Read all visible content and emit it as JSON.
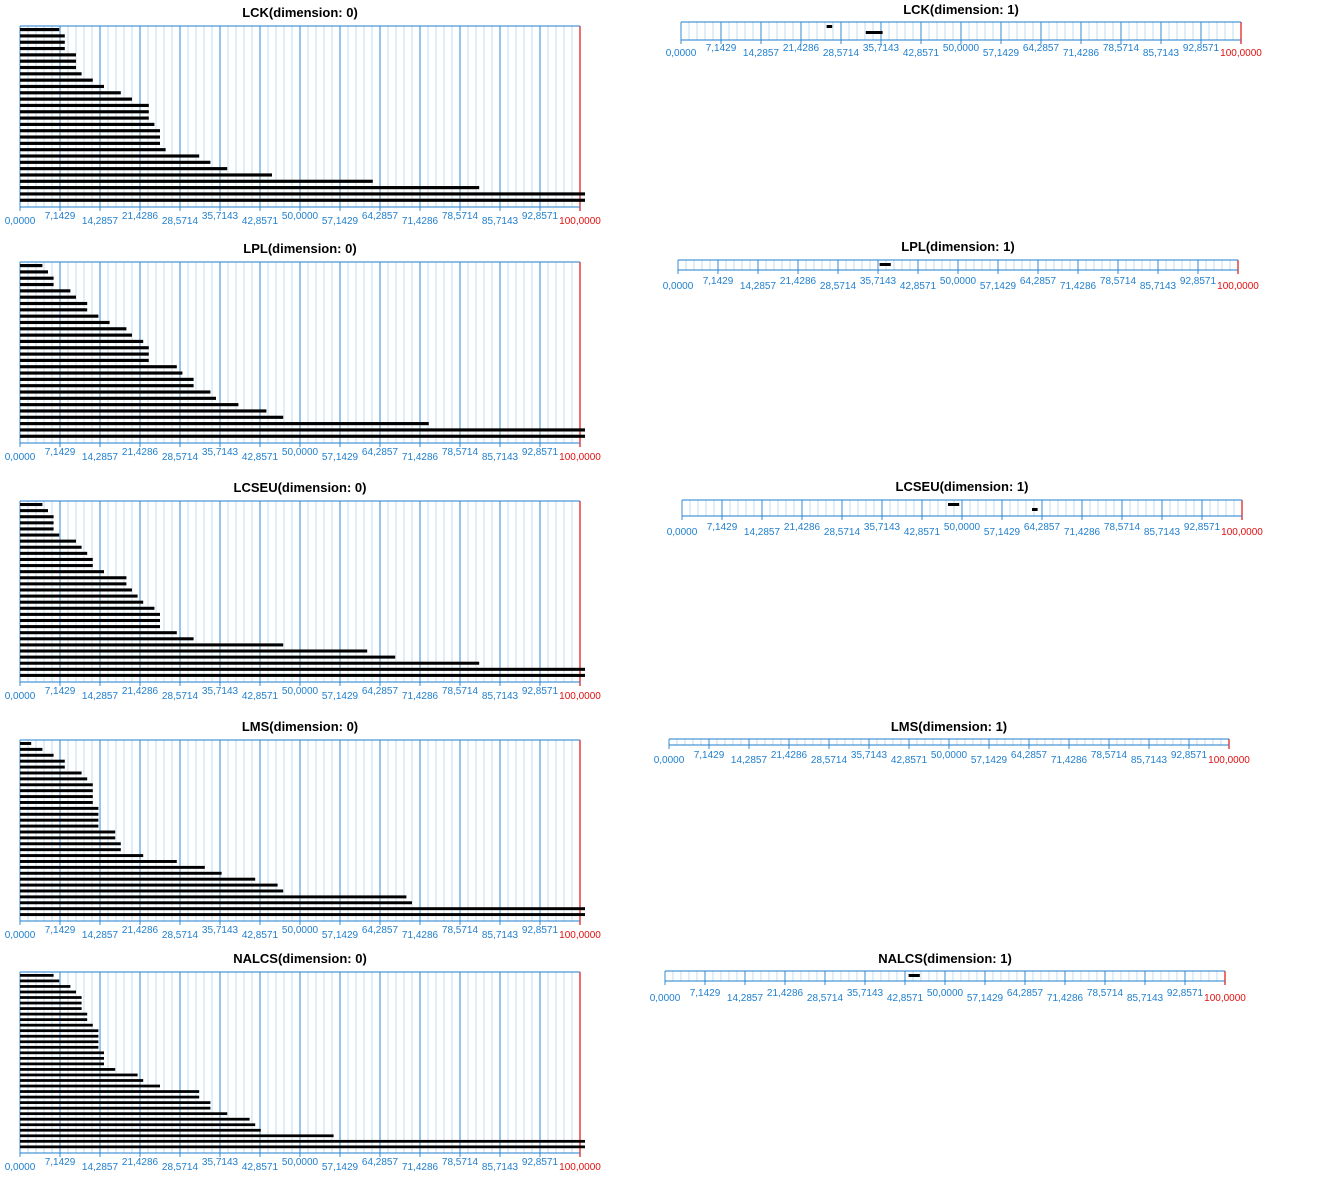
{
  "axis": {
    "ticks": [
      "0,0000",
      "7,1429",
      "14,2857",
      "21,4286",
      "28,5714",
      "35,7143",
      "42,8571",
      "50,0000",
      "57,1429",
      "64,2857",
      "71,4286",
      "78,5714",
      "85,7143",
      "92,8571",
      "100,0000"
    ],
    "tick_values": [
      0,
      7.1429,
      14.2857,
      21.4286,
      28.5714,
      35.7143,
      42.8571,
      50,
      57.1429,
      64.2857,
      71.4286,
      78.5714,
      85.7143,
      92.8571,
      100
    ],
    "xlim": [
      0,
      100
    ],
    "minor_step": 1.4286,
    "colors": {
      "grid": "#1f7fcf",
      "max_line": "#e01010",
      "bar": "#000000"
    }
  },
  "chart_data": [
    {
      "type": "bar",
      "orientation": "horizontal",
      "title": "LCK(dimension: 0)",
      "xlim": [
        0,
        100
      ],
      "values": [
        7,
        8,
        8,
        8,
        10,
        10,
        10,
        11,
        13,
        15,
        18,
        20,
        23,
        23,
        23,
        24,
        25,
        25,
        25,
        26,
        32,
        34,
        37,
        45,
        63,
        82,
        101,
        101
      ]
    },
    {
      "type": "interval",
      "title": "LCK(dimension: 1)",
      "xlim": [
        0,
        100
      ],
      "intervals": [
        [
          26.0,
          27.0
        ],
        [
          33.0,
          36.0
        ]
      ]
    },
    {
      "type": "bar",
      "orientation": "horizontal",
      "title": "LPL(dimension: 0)",
      "xlim": [
        0,
        100
      ],
      "values": [
        4,
        5,
        6,
        6,
        9,
        10,
        12,
        12,
        14,
        16,
        19,
        20,
        22,
        23,
        23,
        23,
        28,
        29,
        31,
        31,
        34,
        35,
        39,
        44,
        47,
        73,
        101,
        101
      ]
    },
    {
      "type": "interval",
      "title": "LPL(dimension: 1)",
      "xlim": [
        0,
        100
      ],
      "intervals": [
        [
          36.0,
          38.0
        ]
      ]
    },
    {
      "type": "bar",
      "orientation": "horizontal",
      "title": "LCSEU(dimension: 0)",
      "xlim": [
        0,
        100
      ],
      "values": [
        4,
        5,
        6,
        6,
        6,
        7,
        10,
        11,
        12,
        13,
        13,
        15,
        19,
        19,
        20,
        21,
        22,
        24,
        25,
        25,
        25,
        28,
        31,
        47,
        62,
        67,
        82,
        101,
        101
      ]
    },
    {
      "type": "interval",
      "title": "LCSEU(dimension: 1)",
      "xlim": [
        0,
        100
      ],
      "intervals": [
        [
          47.5,
          49.5
        ],
        [
          62.5,
          63.5
        ]
      ]
    },
    {
      "type": "bar",
      "orientation": "horizontal",
      "title": "LMS(dimension: 0)",
      "xlim": [
        0,
        100
      ],
      "values": [
        2,
        4,
        6,
        8,
        8,
        11,
        12,
        13,
        13,
        13,
        13,
        14,
        14,
        14,
        14,
        17,
        17,
        18,
        18,
        22,
        28,
        33,
        36,
        42,
        46,
        47,
        69,
        70,
        101,
        101
      ]
    },
    {
      "type": "interval",
      "title": "LMS(dimension: 1)",
      "xlim": [
        0,
        100
      ],
      "intervals": []
    },
    {
      "type": "bar",
      "orientation": "horizontal",
      "title": "NALCS(dimension: 0)",
      "xlim": [
        0,
        100
      ],
      "values": [
        6,
        7,
        9,
        10,
        11,
        11,
        11,
        12,
        12,
        13,
        14,
        14,
        14,
        14,
        15,
        15,
        15,
        17,
        21,
        22,
        25,
        32,
        32,
        34,
        34,
        37,
        41,
        42,
        43,
        56,
        101,
        101
      ]
    },
    {
      "type": "interval",
      "title": "NALCS(dimension: 1)",
      "xlim": [
        0,
        100
      ],
      "intervals": [
        [
          43.5,
          45.5
        ]
      ]
    }
  ]
}
